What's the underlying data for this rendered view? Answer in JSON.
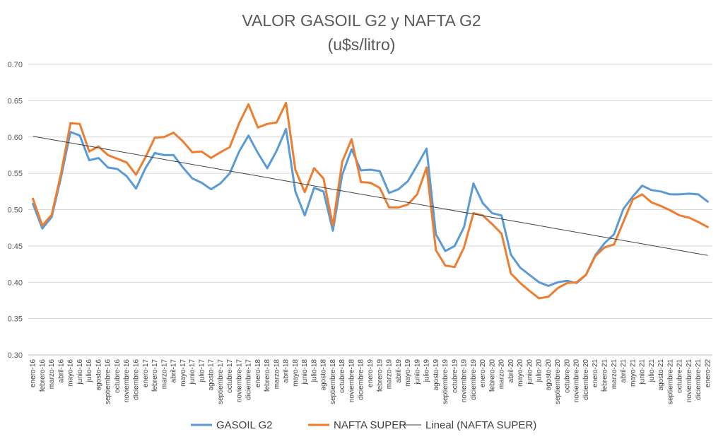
{
  "chart_data": {
    "type": "line",
    "title": "VALOR GASOIL G2 y NAFTA G2",
    "subtitle": "(u$s/litro)",
    "xlabel": "",
    "ylabel": "",
    "ylim": [
      0.3,
      0.7
    ],
    "yticks": [
      "0.30",
      "0.35",
      "0.40",
      "0.45",
      "0.50",
      "0.55",
      "0.60",
      "0.65",
      "0.70"
    ],
    "grid": true,
    "legend_position": "bottom",
    "categories": [
      "enero-16",
      "febrero-16",
      "marzo-16",
      "abril-16",
      "mayo-16",
      "junio-16",
      "julio-16",
      "agosto-16",
      "septiembre-16",
      "octubre-16",
      "noviembre-16",
      "diciembre-16",
      "enero-17",
      "febrero-17",
      "marzo-17",
      "abril-17",
      "mayo-17",
      "junio-17",
      "julio-17",
      "agosto-17",
      "septiembre-17",
      "octubre-17",
      "noviembre-17",
      "diciembre-17",
      "enero-18",
      "febrero-18",
      "marzo-18",
      "abril-18",
      "mayo-18",
      "junio-18",
      "julio-18",
      "agosto-18",
      "septiembre-18",
      "octubre-18",
      "noviembre-18",
      "diciembre-18",
      "enero-19",
      "febrero-19",
      "marzo-19",
      "abril-19",
      "mayo-19",
      "junio-19",
      "julio-19",
      "agosto-19",
      "septiembre-19",
      "octubre-19",
      "noviembre-19",
      "diciembre-19",
      "enero-20",
      "febrero-20",
      "marzo-20",
      "abril-20",
      "mayo-20",
      "junio-20",
      "julio-20",
      "agosto-20",
      "septiembre-20",
      "octubre-20",
      "noviembre-20",
      "diciembre-20",
      "enero-21",
      "febrero-21",
      "marzo-21",
      "abril-21",
      "mayo-21",
      "junio-21",
      "julio-21",
      "agosto-21",
      "septiembre-21",
      "octubre-21",
      "noviembre-21",
      "diciembre-21",
      "enero-22"
    ],
    "series": [
      {
        "name": "GASOIL G2",
        "color": "#5B9BD5",
        "values": [
          0.508,
          0.474,
          0.49,
          0.545,
          0.607,
          0.602,
          0.568,
          0.571,
          0.558,
          0.556,
          0.546,
          0.529,
          0.557,
          0.578,
          0.575,
          0.575,
          0.558,
          0.543,
          0.537,
          0.528,
          0.536,
          0.55,
          0.58,
          0.602,
          0.578,
          0.557,
          0.581,
          0.611,
          0.525,
          0.492,
          0.53,
          0.525,
          0.471,
          0.548,
          0.583,
          0.554,
          0.555,
          0.553,
          0.523,
          0.528,
          0.539,
          0.561,
          0.584,
          0.466,
          0.443,
          0.45,
          0.476,
          0.536,
          0.509,
          0.495,
          0.492,
          0.438,
          0.42,
          0.41,
          0.4,
          0.395,
          0.4,
          0.402,
          0.399,
          0.41,
          0.437,
          0.454,
          0.466,
          0.501,
          0.518,
          0.533,
          0.527,
          0.525,
          0.521,
          0.521,
          0.522,
          0.521,
          0.511
        ]
      },
      {
        "name": "NAFTA SUPER",
        "color": "#ED7D31",
        "values": [
          0.515,
          0.478,
          0.493,
          0.55,
          0.619,
          0.618,
          0.58,
          0.587,
          0.575,
          0.57,
          0.565,
          0.548,
          0.572,
          0.599,
          0.6,
          0.606,
          0.594,
          0.579,
          0.58,
          0.571,
          0.579,
          0.586,
          0.619,
          0.645,
          0.613,
          0.618,
          0.62,
          0.647,
          0.555,
          0.524,
          0.557,
          0.543,
          0.478,
          0.566,
          0.597,
          0.538,
          0.537,
          0.53,
          0.503,
          0.503,
          0.507,
          0.521,
          0.558,
          0.444,
          0.423,
          0.421,
          0.448,
          0.495,
          0.492,
          0.48,
          0.467,
          0.412,
          0.399,
          0.388,
          0.378,
          0.38,
          0.392,
          0.399,
          0.4,
          0.41,
          0.436,
          0.448,
          0.452,
          0.483,
          0.514,
          0.521,
          0.51,
          0.505,
          0.499,
          0.492,
          0.489,
          0.483,
          0.476
        ]
      },
      {
        "name": "Lineal (NAFTA SUPER)",
        "color": "#404040",
        "trend_start": 0.601,
        "trend_end": 0.437
      }
    ]
  }
}
